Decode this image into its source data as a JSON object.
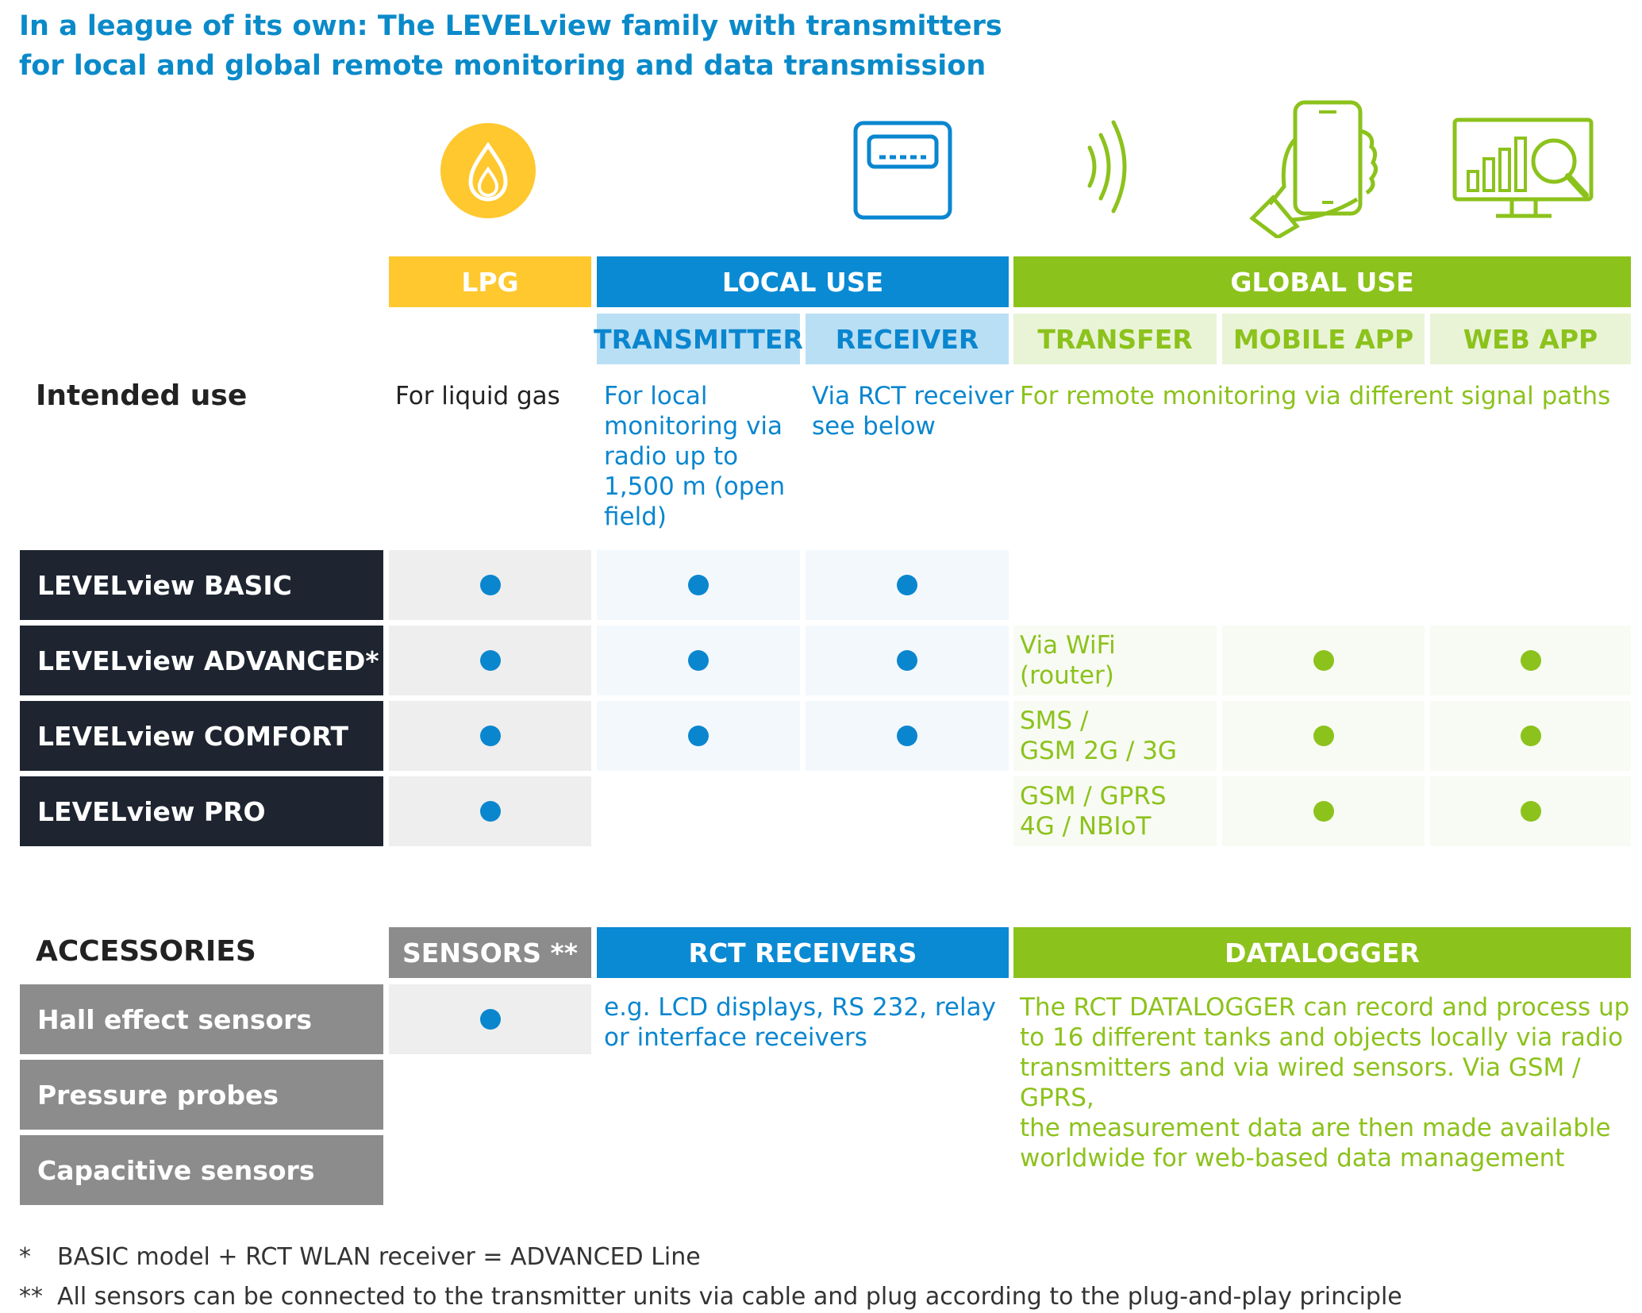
{
  "title": {
    "line1": "In a league of its own: The LEVELview family with transmitters",
    "line2": "for local and global remote monitoring and data transmission"
  },
  "icons": [
    "flame-icon",
    "display-device-icon",
    "radio-waves-icon",
    "smartphone-hand-icon",
    "monitor-analytics-icon"
  ],
  "colors": {
    "lpg": "#fec82e",
    "local": "#0a8ad3",
    "global": "#8cc21c",
    "dark": "#1e2530",
    "gray": "#8c8c8c"
  },
  "headers": {
    "lpg": "LPG",
    "local": "LOCAL USE",
    "global": "GLOBAL USE",
    "transmitter": "TRANSMITTER",
    "receiver": "RECEIVER",
    "transfer": "TRANSFER",
    "mobile_app": "MOBILE APP",
    "web_app": "WEB APP"
  },
  "intended_use": {
    "label": "Intended use",
    "lpg": "For liquid gas",
    "transmitter": [
      "For local",
      "monitoring via",
      "radio up to",
      "1,500 m (open",
      "field)"
    ],
    "receiver": [
      "Via RCT receiver",
      "see below"
    ],
    "global": "For remote monitoring via different signal paths"
  },
  "models": [
    {
      "name": "LEVELview BASIC",
      "lpg": true,
      "transmitter": true,
      "receiver": true,
      "transfer": [],
      "mobile": false,
      "web": false
    },
    {
      "name": "LEVELview ADVANCED*",
      "lpg": true,
      "transmitter": true,
      "receiver": true,
      "transfer": [
        "Via WiFi (router)"
      ],
      "mobile": true,
      "web": true
    },
    {
      "name": "LEVELview COMFORT",
      "lpg": true,
      "transmitter": true,
      "receiver": true,
      "transfer": [
        "SMS /",
        "GSM 2G / 3G"
      ],
      "mobile": true,
      "web": true
    },
    {
      "name": "LEVELview PRO",
      "lpg": true,
      "transmitter": false,
      "receiver": false,
      "transfer": [
        "GSM / GPRS",
        "4G / NBIoT"
      ],
      "mobile": true,
      "web": true
    }
  ],
  "accessories": {
    "label": "ACCESSORIES",
    "sensors_header": "SENSORS **",
    "rct_header": "RCT RECEIVERS",
    "datalogger_header": "DATALOGGER",
    "items": [
      "Hall effect sensors",
      "Pressure probes",
      "Capacitive sensors"
    ],
    "rct_text": [
      "e.g. LCD displays, RS 232, relay",
      "or interface receivers"
    ],
    "datalogger_text": [
      "The RCT DATALOGGER can record and process up",
      "to 16 different tanks and objects locally via radio",
      "transmitters and via wired sensors. Via GSM / GPRS,",
      "the measurement data are then made available",
      "worldwide for web-based data management"
    ]
  },
  "footnotes": [
    {
      "mark": "*",
      "text": "BASIC model + RCT WLAN receiver = ADVANCED Line"
    },
    {
      "mark": "**",
      "text": "All sensors can be connected to the transmitter units via cable and plug according to the plug-and-play principle"
    }
  ]
}
